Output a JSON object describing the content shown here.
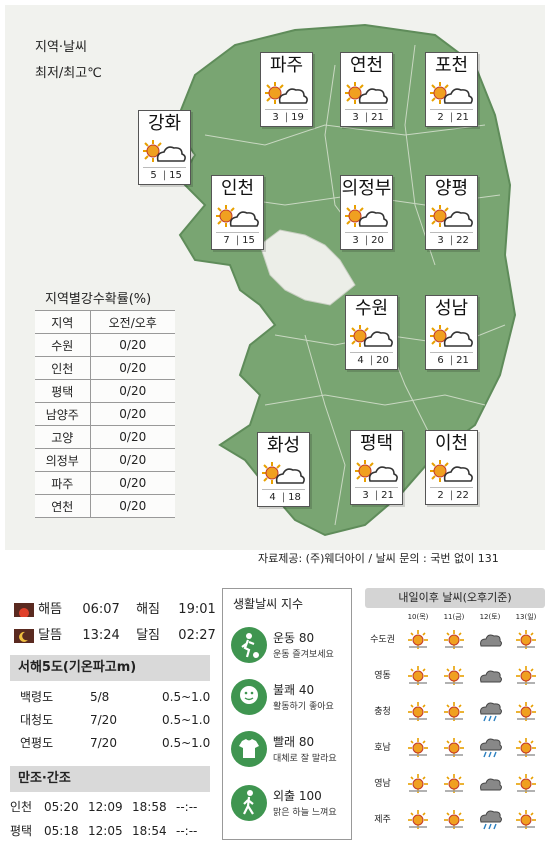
{
  "legend": {
    "line1": "지역·날씨",
    "line2": "최저/최고℃"
  },
  "cities": [
    {
      "name": "파주",
      "low": "3",
      "high": "19",
      "weather": "partly-cloudy-icon"
    },
    {
      "name": "연천",
      "low": "3",
      "high": "21",
      "weather": "partly-cloudy-icon"
    },
    {
      "name": "포천",
      "low": "2",
      "high": "21",
      "weather": "partly-cloudy-icon"
    },
    {
      "name": "강화",
      "low": "5",
      "high": "15",
      "weather": "partly-cloudy-icon"
    },
    {
      "name": "인천",
      "low": "7",
      "high": "15",
      "weather": "partly-cloudy-icon"
    },
    {
      "name": "의정부",
      "low": "3",
      "high": "20",
      "weather": "partly-cloudy-icon"
    },
    {
      "name": "양평",
      "low": "3",
      "high": "22",
      "weather": "partly-cloudy-icon"
    },
    {
      "name": "수원",
      "low": "4",
      "high": "20",
      "weather": "partly-cloudy-icon"
    },
    {
      "name": "성남",
      "low": "6",
      "high": "21",
      "weather": "partly-cloudy-icon"
    },
    {
      "name": "화성",
      "low": "4",
      "high": "18",
      "weather": "partly-cloudy-icon"
    },
    {
      "name": "평택",
      "low": "3",
      "high": "21",
      "weather": "partly-cloudy-icon"
    },
    {
      "name": "이천",
      "low": "2",
      "high": "22",
      "weather": "partly-cloudy-icon"
    }
  ],
  "rain": {
    "title": "지역별강수확률(%)",
    "header": {
      "region": "지역",
      "value": "오전/오후"
    },
    "rows": [
      {
        "region": "수원",
        "value": "0/20"
      },
      {
        "region": "인천",
        "value": "0/20"
      },
      {
        "region": "평택",
        "value": "0/20"
      },
      {
        "region": "남양주",
        "value": "0/20"
      },
      {
        "region": "고양",
        "value": "0/20"
      },
      {
        "region": "의정부",
        "value": "0/20"
      },
      {
        "region": "파주",
        "value": "0/20"
      },
      {
        "region": "연천",
        "value": "0/20"
      }
    ]
  },
  "source": "자료제공: (주)웨더아이 / 날씨 문의 : 국번 없이 131",
  "sun": {
    "rise_label": "해뜸",
    "rise": "06:07",
    "set_label": "해짐",
    "set": "19:01",
    "moonrise_label": "달뜸",
    "moonrise": "13:24",
    "moonset_label": "달짐",
    "moonset": "02:27"
  },
  "sea": {
    "title": "서해5도(기온파고m)",
    "rows": [
      {
        "name": "백령도",
        "temp": "5/8",
        "wave": "0.5~1.0"
      },
      {
        "name": "대청도",
        "temp": "7/20",
        "wave": "0.5~1.0"
      },
      {
        "name": "연평도",
        "temp": "7/20",
        "wave": "0.5~1.0"
      }
    ]
  },
  "tide": {
    "title": "만조·간조",
    "rows": [
      {
        "name": "인천",
        "t1": "05:20",
        "t2": "12:09",
        "t3": "18:58",
        "t4": "--:--"
      },
      {
        "name": "평택",
        "t1": "05:18",
        "t2": "12:05",
        "t3": "18:54",
        "t4": "--:--"
      }
    ]
  },
  "life": {
    "title": "생활날씨 지수",
    "items": [
      {
        "name": "운동 80",
        "desc": "운동 즐겨보세요",
        "icon": "soccer-icon"
      },
      {
        "name": "불쾌 40",
        "desc": "활동하기 좋아요",
        "icon": "face-icon"
      },
      {
        "name": "빨래 80",
        "desc": "대체로 잘 말라요",
        "icon": "shirt-icon"
      },
      {
        "name": "외출 100",
        "desc": "맑은 하늘 느껴요",
        "icon": "walking-icon"
      }
    ]
  },
  "future": {
    "title": "내일이후 날씨(오후기준)",
    "days": [
      "10(목)",
      "11(금)",
      "12(토)",
      "13(일)"
    ],
    "rows": [
      {
        "region": "수도권",
        "icons": [
          "sunny-icon",
          "sunny-icon",
          "cloudy-icon",
          "sunny-icon"
        ]
      },
      {
        "region": "영동",
        "icons": [
          "sunny-icon",
          "sunny-icon",
          "cloudy-icon",
          "sunny-icon"
        ]
      },
      {
        "region": "충청",
        "icons": [
          "sunny-icon",
          "sunny-icon",
          "rain-icon",
          "sunny-icon"
        ]
      },
      {
        "region": "호남",
        "icons": [
          "sunny-icon",
          "sunny-icon",
          "rain-icon",
          "sunny-icon"
        ]
      },
      {
        "region": "영남",
        "icons": [
          "sunny-icon",
          "sunny-icon",
          "cloudy-icon",
          "sunny-icon"
        ]
      },
      {
        "region": "제주",
        "icons": [
          "sunny-icon",
          "sunny-icon",
          "rain-icon",
          "sunny-icon"
        ]
      }
    ]
  }
}
